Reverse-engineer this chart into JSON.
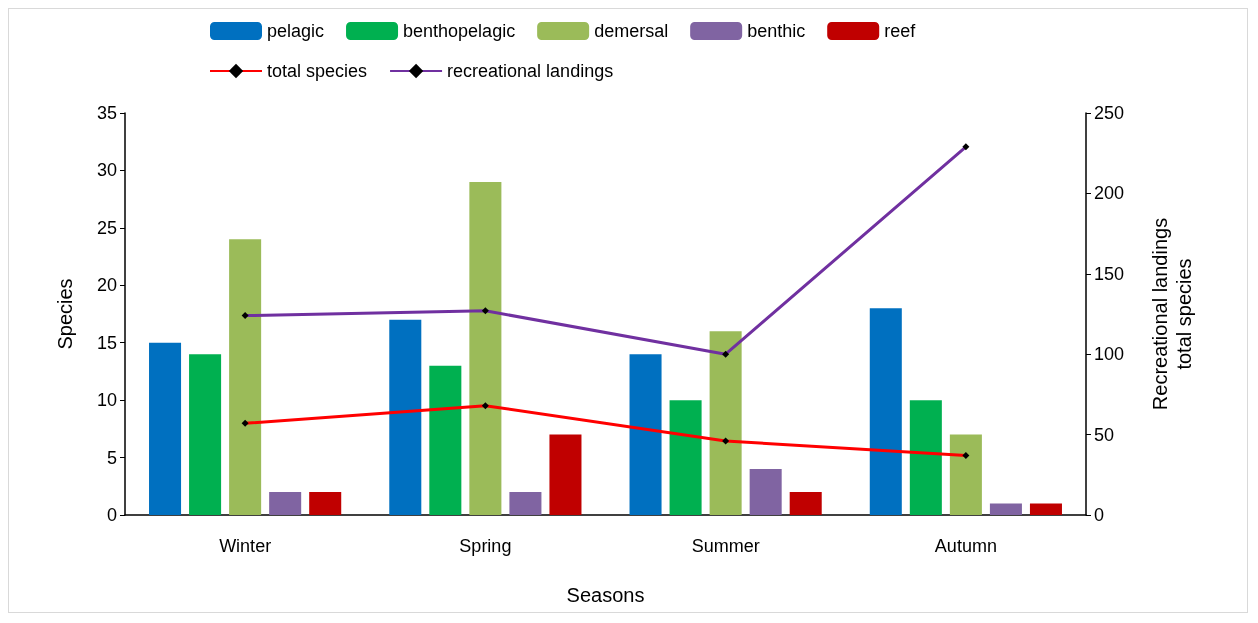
{
  "chart_data": {
    "type": "bar",
    "xlabel": "Seasons",
    "ylabel": "Species",
    "y2label": "Recreational landings\ntotal species",
    "categories": [
      "Winter",
      "Spring",
      "Summer",
      "Autumn"
    ],
    "series": [
      {
        "name": "pelagic",
        "color": "#0070c0",
        "values": [
          15,
          17,
          14,
          18
        ]
      },
      {
        "name": "benthopelagic",
        "color": "#00b050",
        "values": [
          14,
          13,
          10,
          10
        ]
      },
      {
        "name": "demersal",
        "color": "#9bbb59",
        "values": [
          24,
          29,
          16,
          7
        ]
      },
      {
        "name": "benthic",
        "color": "#8064a2",
        "values": [
          2,
          2,
          4,
          1
        ]
      },
      {
        "name": "reef",
        "color": "#c00000",
        "values": [
          2,
          7,
          2,
          1
        ]
      },
      {
        "name": "total species",
        "type": "line",
        "axis": "y2",
        "color": "#ff0000",
        "values": [
          57,
          68,
          46,
          37
        ]
      },
      {
        "name": "recreational landings",
        "type": "line",
        "axis": "y2",
        "color": "#7030a0",
        "values": [
          124,
          127,
          100,
          229
        ]
      }
    ],
    "ylim": [
      0,
      35
    ],
    "yticks": [
      0,
      5,
      10,
      15,
      20,
      25,
      30,
      35
    ],
    "y2lim": [
      0,
      250
    ],
    "y2ticks": [
      0,
      50,
      100,
      150,
      200,
      250
    ],
    "grid": false,
    "legend": "top",
    "marker": "diamond"
  }
}
